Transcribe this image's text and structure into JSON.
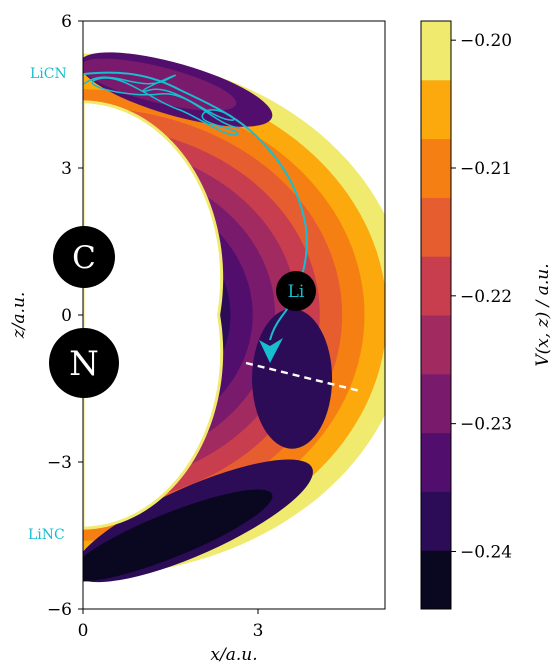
{
  "chart_data": {
    "type": "heatmap",
    "title": "",
    "xlabel": "x/a.u.",
    "ylabel": "z/a.u.",
    "xlim": [
      0,
      5.2
    ],
    "ylim": [
      -6,
      6
    ],
    "xticks": [
      "0",
      "3"
    ],
    "yticks": [
      "6",
      "3",
      "0",
      "−3",
      "−6"
    ],
    "colorbar": {
      "label": "V(x, z) / a.u.",
      "range": [
        -0.2445,
        -0.1985
      ],
      "tick_labels": [
        "−0.20",
        "−0.21",
        "−0.22",
        "−0.23",
        "−0.24"
      ],
      "tick_values": [
        -0.2,
        -0.21,
        -0.22,
        -0.23,
        -0.24
      ],
      "levels": [
        -0.2445,
        -0.2415,
        -0.2385,
        -0.2355,
        -0.2325,
        -0.2295,
        -0.2265,
        -0.2235,
        -0.2205,
        -0.2175,
        -0.2145,
        -0.2115,
        -0.2085,
        -0.1985
      ],
      "colors": [
        "#0a0821",
        "#2c0b57",
        "#520e6d",
        "#7a1a6d",
        "#a12b61",
        "#c83e4f",
        "#e65d30",
        "#f67f13",
        "#fba90d",
        "#f0ea6f"
      ]
    },
    "atoms": [
      {
        "label": "C",
        "x": 0,
        "z": 1.2
      },
      {
        "label": "N",
        "x": 0,
        "z": -0.9
      }
    ],
    "li_atom": {
      "label": "Li",
      "x": 3.6,
      "z": 0.5
    },
    "trajectory": {
      "color": "#17becf",
      "points": [
        [
          0.1,
          4.7
        ],
        [
          1.2,
          4.6
        ],
        [
          2.2,
          4.2
        ],
        [
          2.8,
          3.9
        ],
        [
          3.2,
          3.5
        ],
        [
          3.6,
          3.0
        ],
        [
          3.8,
          2.3
        ],
        [
          3.7,
          1.5
        ],
        [
          3.4,
          0.4
        ],
        [
          3.2,
          -0.4
        ],
        [
          3.1,
          -0.9
        ]
      ]
    },
    "dividing_line": {
      "points": [
        [
          2.8,
          -0.6
        ],
        [
          4.8,
          -1.5
        ]
      ],
      "style": "dashed",
      "color": "#ffffff"
    },
    "annotations": [
      "LiCN",
      "LiNC"
    ]
  }
}
